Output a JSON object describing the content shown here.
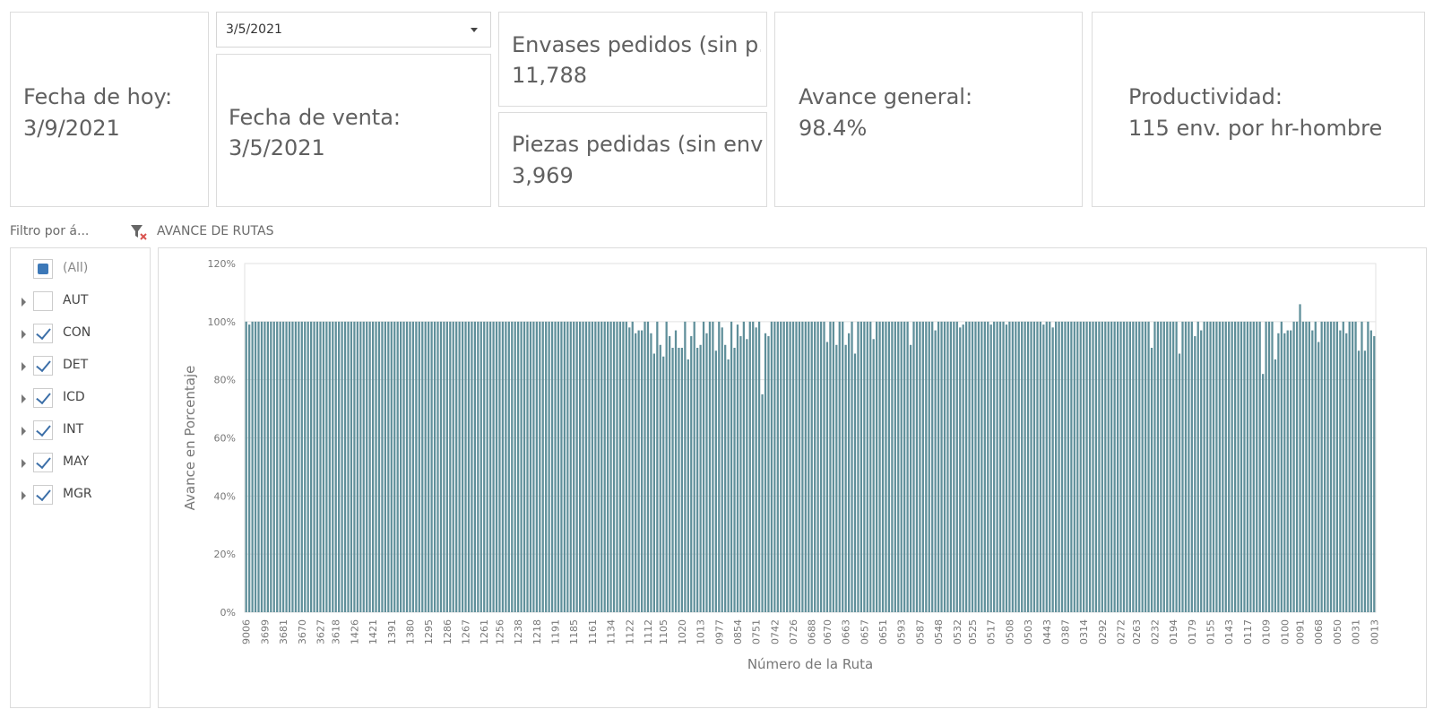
{
  "kpis": {
    "today_label": "Fecha de hoy:",
    "today_value": "3/9/2021",
    "sale_date_label": "Fecha de venta:",
    "sale_date_value": "3/5/2021",
    "containers_label": "Envases pedidos (sin p...",
    "containers_value": "11,788",
    "pieces_label": "Piezas pedidas (sin env):",
    "pieces_value": "3,969",
    "progress_label": "Avance general:",
    "progress_value": "98.4%",
    "productivity_label": "Productividad:",
    "productivity_value": "115 env. por hr-hombre"
  },
  "date_dropdown": {
    "selected": "3/5/2021"
  },
  "filter": {
    "title": "Filtro por á...",
    "clear_icon": "filter-clear-icon",
    "items": [
      {
        "label": "(All)",
        "state": "partial",
        "expandable": false
      },
      {
        "label": "AUT",
        "state": "unchecked",
        "expandable": true
      },
      {
        "label": "CON",
        "state": "checked",
        "expandable": true
      },
      {
        "label": "DET",
        "state": "checked",
        "expandable": true
      },
      {
        "label": "ICD",
        "state": "checked",
        "expandable": true
      },
      {
        "label": "INT",
        "state": "checked",
        "expandable": true
      },
      {
        "label": "MAY",
        "state": "checked",
        "expandable": true
      },
      {
        "label": "MGR",
        "state": "checked",
        "expandable": true
      }
    ]
  },
  "colors": {
    "bar": "#5f8f9a",
    "grid": "#e2e2e2",
    "axis_text": "#777777",
    "check": "#3c6fa8"
  },
  "chart_data": {
    "type": "bar",
    "title": "AVANCE DE RUTAS",
    "xlabel": "Número de la Ruta",
    "ylabel": "Avance en Porcentaje",
    "ylim": [
      0,
      120
    ],
    "yticks": [
      "0%",
      "20%",
      "40%",
      "60%",
      "80%",
      "100%",
      "120%"
    ],
    "xtick_labels": [
      "9006",
      "3699",
      "3681",
      "3670",
      "3627",
      "3618",
      "1426",
      "1421",
      "1391",
      "1380",
      "1295",
      "1286",
      "1267",
      "1261",
      "1256",
      "1238",
      "1218",
      "1191",
      "1185",
      "1161",
      "1134",
      "1122",
      "1112",
      "1105",
      "1020",
      "1013",
      "0977",
      "0854",
      "0751",
      "0742",
      "0726",
      "0688",
      "0670",
      "0663",
      "0657",
      "0651",
      "0593",
      "0587",
      "0548",
      "0532",
      "0525",
      "0517",
      "0508",
      "0503",
      "0443",
      "0387",
      "0314",
      "0292",
      "0272",
      "0263",
      "0232",
      "0194",
      "0179",
      "0155",
      "0143",
      "0117",
      "0109",
      "0100",
      "0091",
      "0068",
      "0050",
      "0031",
      "0013"
    ],
    "values": [
      100,
      99,
      100,
      100,
      100,
      100,
      100,
      100,
      100,
      100,
      100,
      100,
      100,
      100,
      100,
      100,
      100,
      100,
      100,
      100,
      100,
      100,
      100,
      100,
      100,
      100,
      100,
      100,
      100,
      100,
      100,
      100,
      100,
      100,
      100,
      100,
      100,
      100,
      100,
      100,
      100,
      100,
      100,
      100,
      100,
      100,
      100,
      100,
      100,
      100,
      100,
      100,
      100,
      100,
      100,
      100,
      100,
      100,
      100,
      100,
      100,
      100,
      100,
      100,
      100,
      100,
      100,
      100,
      100,
      100,
      100,
      100,
      100,
      100,
      100,
      100,
      100,
      100,
      100,
      100,
      100,
      100,
      100,
      100,
      100,
      100,
      100,
      100,
      100,
      100,
      100,
      100,
      100,
      100,
      100,
      100,
      100,
      100,
      100,
      100,
      100,
      100,
      100,
      100,
      100,
      100,
      100,
      100,
      100,
      100,
      100,
      100,
      100,
      100,
      100,
      100,
      100,
      100,
      100,
      100,
      100,
      100,
      100,
      100,
      98,
      100,
      96,
      97,
      97,
      100,
      100,
      96,
      89,
      100,
      92,
      88,
      100,
      95,
      91,
      97,
      91,
      91,
      100,
      87,
      95,
      100,
      91,
      92,
      100,
      96,
      100,
      100,
      90,
      100,
      98,
      92,
      87,
      100,
      91,
      99,
      95,
      100,
      94,
      100,
      100,
      98,
      100,
      75,
      96,
      95,
      100,
      100,
      100,
      100,
      100,
      100,
      100,
      100,
      100,
      100,
      100,
      100,
      100,
      100,
      100,
      100,
      100,
      100,
      93,
      100,
      100,
      92,
      100,
      100,
      92,
      96,
      100,
      89,
      100,
      100,
      100,
      100,
      100,
      94,
      100,
      100,
      100,
      100,
      100,
      100,
      100,
      100,
      100,
      100,
      100,
      92,
      100,
      100,
      100,
      100,
      100,
      100,
      100,
      97,
      100,
      100,
      100,
      100,
      100,
      100,
      100,
      98,
      99,
      100,
      100,
      100,
      100,
      100,
      100,
      100,
      100,
      99,
      100,
      100,
      100,
      100,
      99,
      100,
      100,
      100,
      100,
      100,
      100,
      100,
      100,
      100,
      100,
      100,
      99,
      100,
      100,
      98,
      100,
      100,
      100,
      100,
      100,
      100,
      100,
      100,
      100,
      100,
      100,
      100,
      100,
      100,
      100,
      100,
      100,
      100,
      100,
      100,
      100,
      100,
      100,
      100,
      100,
      100,
      100,
      100,
      100,
      100,
      100,
      91,
      100,
      100,
      100,
      100,
      100,
      100,
      100,
      100,
      89,
      100,
      100,
      100,
      100,
      95,
      100,
      97,
      100,
      100,
      100,
      100,
      100,
      100,
      100,
      100,
      100,
      100,
      100,
      100,
      100,
      100,
      100,
      100,
      100,
      100,
      100,
      82,
      100,
      100,
      100,
      87,
      96,
      100,
      96,
      97,
      97,
      100,
      100,
      106,
      100,
      100,
      100,
      97,
      100,
      93,
      100,
      100,
      100,
      100,
      100,
      100,
      97,
      100,
      96,
      100,
      100,
      100,
      90,
      100,
      90,
      100,
      97,
      95
    ]
  }
}
